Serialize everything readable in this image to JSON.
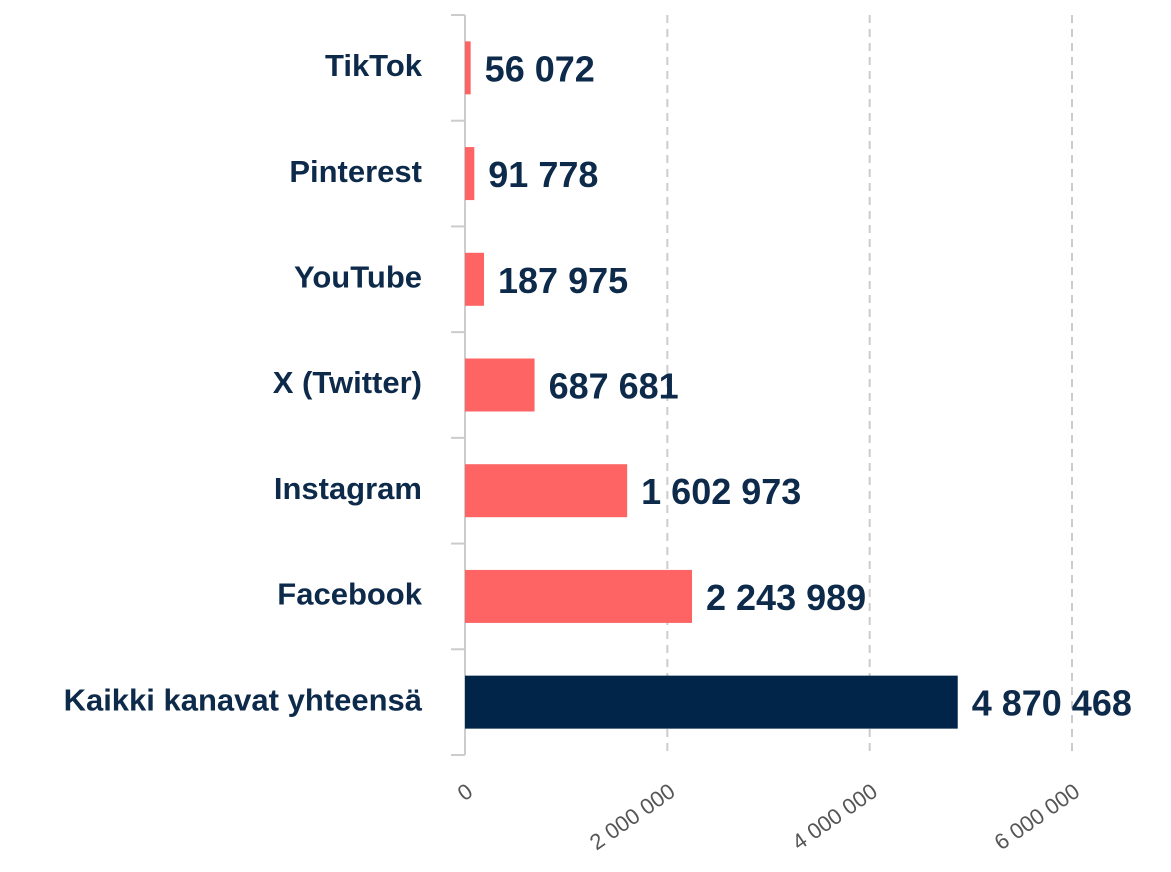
{
  "chart_data": {
    "type": "bar",
    "orientation": "horizontal",
    "categories": [
      "TikTok",
      "Pinterest",
      "YouTube",
      "X (Twitter)",
      "Instagram",
      "Facebook",
      "Kaikki kanavat yhteensä"
    ],
    "values": [
      56072,
      91778,
      187975,
      687681,
      1602973,
      2243989,
      4870468
    ],
    "value_labels": [
      "56 072",
      "91 778",
      "187 975",
      "687 681",
      "1 602 973",
      "2 243 989",
      "4 870 468"
    ],
    "colors": [
      "#ff6464",
      "#ff6464",
      "#ff6464",
      "#ff6464",
      "#ff6464",
      "#ff6464",
      "#002548"
    ],
    "xlim": [
      0,
      6000000
    ],
    "xticks": [
      0,
      {
        "value": 2000000,
        "label": "2 000 000"
      },
      {
        "value": 4000000,
        "label": "4 000 000"
      },
      {
        "value": 6000000,
        "label": "6 000 000"
      }
    ],
    "grid": true
  }
}
